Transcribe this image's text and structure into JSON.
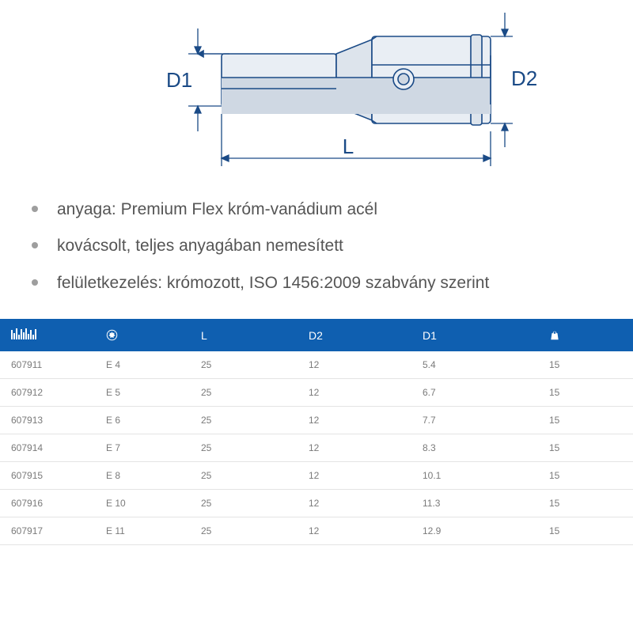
{
  "diagram": {
    "labels": {
      "d1": "D1",
      "d2": "D2",
      "l": "L"
    },
    "stroke": "#1a4a86",
    "fill_light": "#e9eef4",
    "fill_med": "#cfd8e3",
    "fill_mid": "#dde4ec",
    "text_color": "#1a4a86",
    "font_size": 26,
    "font_family": "Arial"
  },
  "bullets": [
    "anyaga: Premium Flex króm-vanádium acél",
    "kovácsolt, teljes anyagában nemesített",
    "felületkezelés: krómozott, ISO 1456:2009 szabvány szerint"
  ],
  "table": {
    "header_bg": "#0f5fb0",
    "header_fg": "#ffffff",
    "row_border": "#e4e4e4",
    "cell_color": "#7a7a7a",
    "columns": [
      {
        "key": "code",
        "type": "icon-barcode",
        "width": "15%"
      },
      {
        "key": "torx",
        "type": "icon-torx",
        "width": "15%"
      },
      {
        "key": "L",
        "type": "text",
        "label": "L",
        "width": "17%"
      },
      {
        "key": "D2",
        "type": "text",
        "label": "D2",
        "width": "18%"
      },
      {
        "key": "D1",
        "type": "text",
        "label": "D1",
        "width": "20%"
      },
      {
        "key": "wt",
        "type": "icon-weight",
        "width": "15%"
      }
    ],
    "rows": [
      {
        "code": "607911",
        "torx": "E 4",
        "L": "25",
        "D2": "12",
        "D1": "5.4",
        "wt": "15"
      },
      {
        "code": "607912",
        "torx": "E 5",
        "L": "25",
        "D2": "12",
        "D1": "6.7",
        "wt": "15"
      },
      {
        "code": "607913",
        "torx": "E 6",
        "L": "25",
        "D2": "12",
        "D1": "7.7",
        "wt": "15"
      },
      {
        "code": "607914",
        "torx": "E 7",
        "L": "25",
        "D2": "12",
        "D1": "8.3",
        "wt": "15"
      },
      {
        "code": "607915",
        "torx": "E 8",
        "L": "25",
        "D2": "12",
        "D1": "10.1",
        "wt": "15"
      },
      {
        "code": "607916",
        "torx": "E 10",
        "L": "25",
        "D2": "12",
        "D1": "11.3",
        "wt": "15"
      },
      {
        "code": "607917",
        "torx": "E 11",
        "L": "25",
        "D2": "12",
        "D1": "12.9",
        "wt": "15"
      }
    ]
  }
}
